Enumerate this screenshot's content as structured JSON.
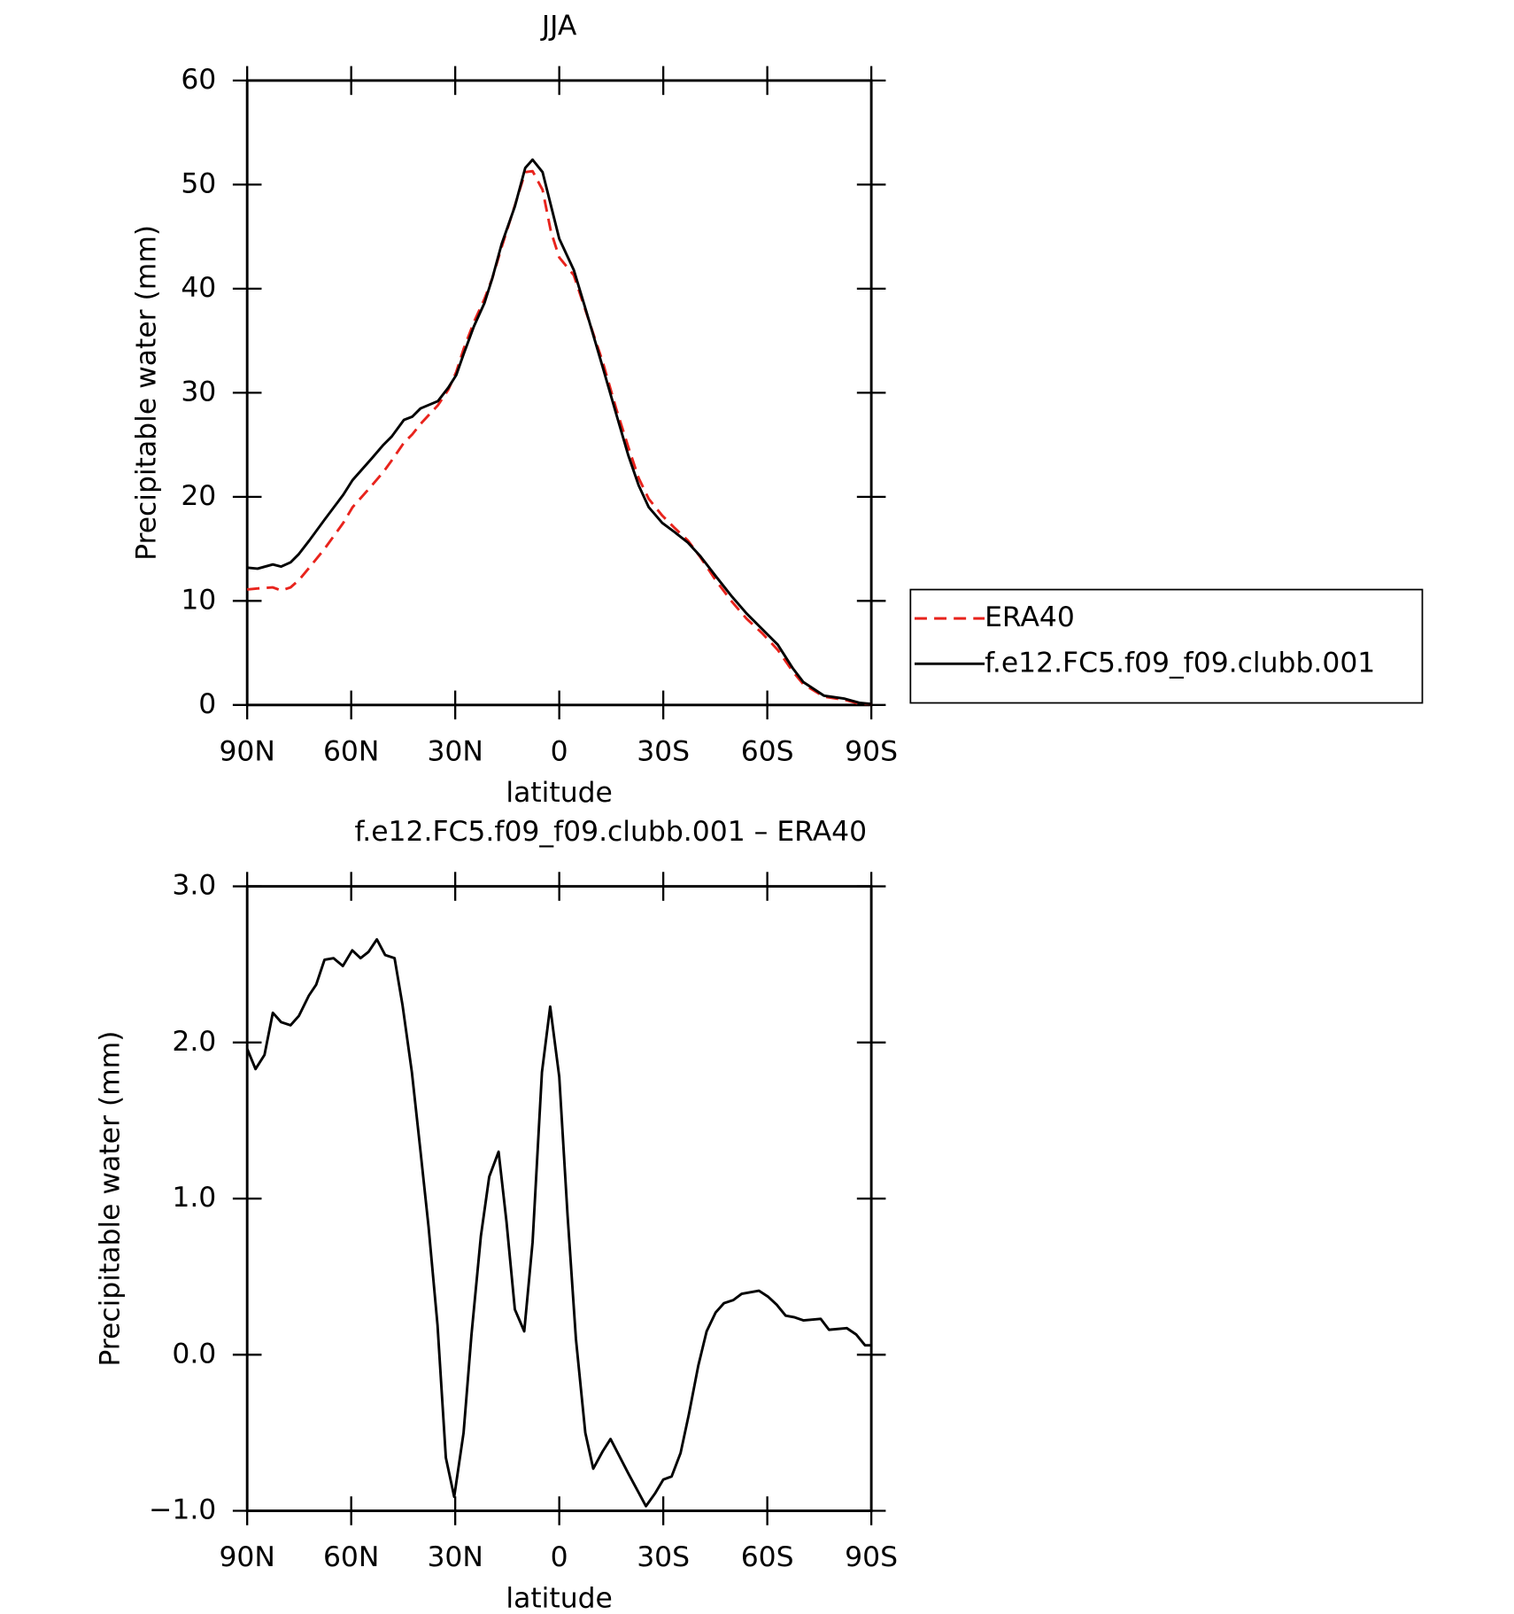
{
  "chart_data": [
    {
      "type": "line",
      "title": "JJA",
      "xlabel": "latitude",
      "ylabel": "Precipitable water (mm)",
      "xlim": [
        90,
        -90
      ],
      "xticks": [
        {
          "value": 90,
          "label": "90N"
        },
        {
          "value": 60,
          "label": "60N"
        },
        {
          "value": 30,
          "label": "30N"
        },
        0,
        {
          "value": -30,
          "label": "30S"
        },
        {
          "value": -60,
          "label": "60S"
        },
        {
          "value": -90,
          "label": "90S"
        }
      ],
      "ylim": [
        0,
        60
      ],
      "yticks": [
        0,
        10,
        20,
        30,
        40,
        50,
        60
      ],
      "legend": "right",
      "x": [
        90,
        87.0,
        82.6,
        80.2,
        77.5,
        75.1,
        72.1,
        67.7,
        62.3,
        59.6,
        54.3,
        50.7,
        48.3,
        44.8,
        42.4,
        40.0,
        35.0,
        32.0,
        29.7,
        27.6,
        24.6,
        21.6,
        19.3,
        16.6,
        12.8,
        9.8,
        7.7,
        4.8,
        2.4,
        0,
        -4.2,
        -8.0,
        -12.5,
        -16.4,
        -19.9,
        -22.9,
        -25.8,
        -29.7,
        -33.3,
        -37.1,
        -40.7,
        -45.1,
        -49.6,
        -54.0,
        -58.5,
        -63.0,
        -67.4,
        -70.4,
        -76.3,
        -82.3,
        -86.7,
        -90
      ],
      "series": [
        {
          "name": "ERA40",
          "color": "#e8231c",
          "dash": true,
          "values": [
            11.1,
            11.2,
            11.3,
            11.0,
            11.3,
            12.0,
            13.2,
            15.0,
            17.5,
            19.0,
            21.0,
            22.4,
            23.5,
            25.2,
            26.0,
            27.0,
            28.8,
            30.3,
            32.0,
            34.2,
            36.8,
            39.0,
            41.0,
            44.0,
            48.0,
            51.2,
            51.3,
            49.5,
            45.5,
            43.0,
            41.3,
            37.5,
            33.0,
            28.5,
            24.8,
            21.8,
            19.8,
            18.2,
            17.0,
            15.8,
            14.2,
            12.0,
            10.0,
            8.3,
            6.9,
            5.3,
            3.2,
            2.0,
            0.8,
            0.5,
            0.1,
            0.1
          ]
        },
        {
          "name": "f.e12.FC5.f09_f09.clubb.001",
          "color": "#000000",
          "dash": false,
          "values": [
            13.2,
            13.1,
            13.5,
            13.3,
            13.7,
            14.5,
            15.8,
            17.8,
            20.2,
            21.6,
            23.6,
            25.0,
            25.8,
            27.4,
            27.7,
            28.5,
            29.2,
            30.5,
            31.7,
            33.7,
            36.4,
            38.6,
            41.0,
            44.3,
            47.9,
            51.6,
            52.4,
            51.2,
            48.0,
            44.8,
            41.8,
            37.6,
            32.5,
            28.0,
            24.0,
            21.1,
            19.0,
            17.5,
            16.6,
            15.6,
            14.3,
            12.4,
            10.5,
            8.8,
            7.3,
            5.8,
            3.5,
            2.2,
            0.9,
            0.6,
            0.2,
            0.1
          ]
        }
      ]
    },
    {
      "type": "line",
      "title": "f.e12.FC5.f09_f09.clubb.001 – ERA40",
      "xlabel": "latitude",
      "ylabel": "Precipitable water (mm)",
      "xlim": [
        90,
        -90
      ],
      "xticks": [
        {
          "value": 90,
          "label": "90N"
        },
        {
          "value": 60,
          "label": "60N"
        },
        {
          "value": 30,
          "label": "30N"
        },
        0,
        {
          "value": -30,
          "label": "30S"
        },
        {
          "value": -60,
          "label": "60S"
        },
        {
          "value": -90,
          "label": "90S"
        }
      ],
      "ylim": [
        -1,
        3
      ],
      "yticks": [
        {
          "value": -1,
          "label": "−1.0"
        },
        {
          "value": 0,
          "label": "0.0"
        },
        {
          "value": 1,
          "label": "1.0"
        },
        {
          "value": 2,
          "label": "2.0"
        },
        {
          "value": 3,
          "label": "3.0"
        }
      ],
      "color": "#000000",
      "x": [
        90,
        87.6,
        85.0,
        82.6,
        80.2,
        77.5,
        75.1,
        72.2,
        70.1,
        67.7,
        65.1,
        62.4,
        59.7,
        57.3,
        55.0,
        52.6,
        50.2,
        47.5,
        45.2,
        42.5,
        40.1,
        37.7,
        35.1,
        32.7,
        30.3,
        27.6,
        25.3,
        22.6,
        20.2,
        17.5,
        15.2,
        12.8,
        10.1,
        7.7,
        5.0,
        2.6,
        0,
        -2.4,
        -4.8,
        -7.5,
        -9.8,
        -12.5,
        -14.8,
        -19.9,
        -25.0,
        -27.6,
        -30.0,
        -32.4,
        -35.0,
        -37.4,
        -40.1,
        -42.5,
        -45.1,
        -47.5,
        -50.2,
        -52.6,
        -57.6,
        -60.3,
        -62.7,
        -65.3,
        -67.7,
        -70.4,
        -75.4,
        -77.8,
        -82.9,
        -85.6,
        -88.2,
        -90
      ],
      "values": [
        1.96,
        1.83,
        1.92,
        2.19,
        2.13,
        2.11,
        2.17,
        2.3,
        2.37,
        2.53,
        2.54,
        2.49,
        2.59,
        2.54,
        2.58,
        2.66,
        2.56,
        2.54,
        2.24,
        1.81,
        1.32,
        0.82,
        0.19,
        -0.66,
        -0.91,
        -0.5,
        0.13,
        0.76,
        1.14,
        1.3,
        0.85,
        0.29,
        0.15,
        0.72,
        1.81,
        2.23,
        1.78,
        0.89,
        0.1,
        -0.5,
        -0.73,
        -0.62,
        -0.54,
        -0.76,
        -0.97,
        -0.89,
        -0.8,
        -0.78,
        -0.63,
        -0.38,
        -0.07,
        0.15,
        0.27,
        0.33,
        0.35,
        0.39,
        0.41,
        0.37,
        0.32,
        0.25,
        0.24,
        0.22,
        0.23,
        0.16,
        0.17,
        0.13,
        0.06,
        0.06
      ]
    }
  ]
}
